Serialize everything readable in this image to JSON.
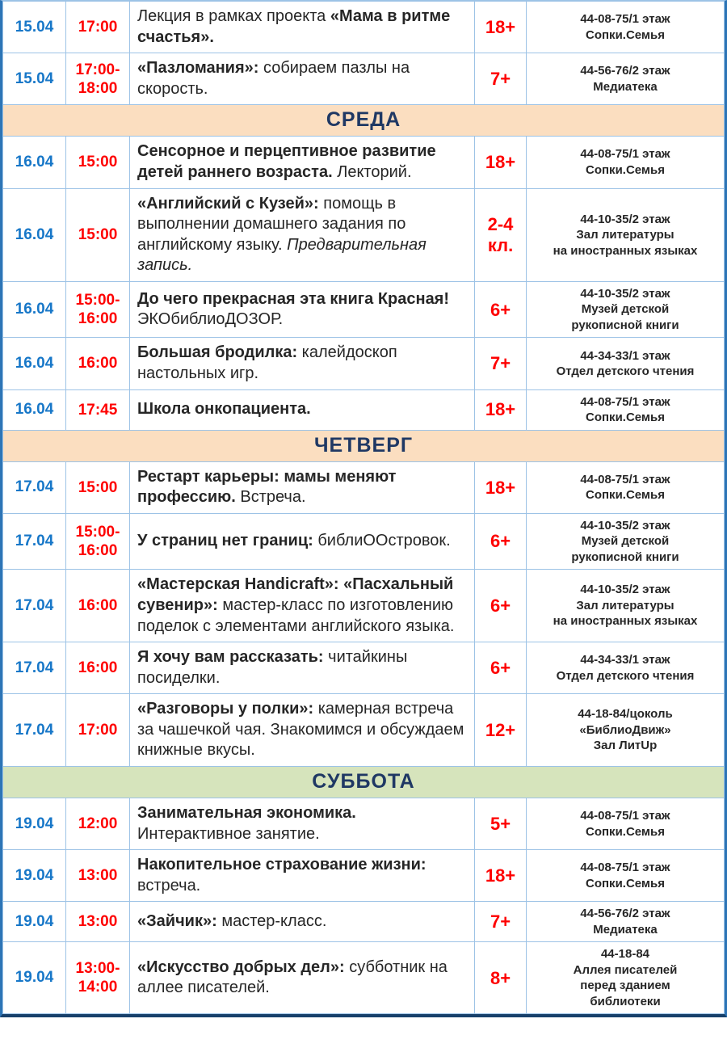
{
  "colors": {
    "date_text": "#1777C8",
    "time_text": "#FE0000",
    "age_text": "#FE0000",
    "body_text": "#262626",
    "day_text": "#1F3864",
    "weekday_header_bg": "#FBDEC0",
    "saturday_header_bg": "#D6E4BC",
    "grid_border": "#9DC3E6",
    "outer_border": "#2E75B6",
    "outer_border_bottom": "#17406B"
  },
  "rows": [
    {
      "type": "event",
      "date": "15.04",
      "time_lines": [
        "17:00"
      ],
      "description": [
        {
          "text": "Лекция в рамках проекта ",
          "bold": false
        },
        {
          "text": "«Мама в ритме счастья».",
          "bold": true
        }
      ],
      "age_lines": [
        "18+"
      ],
      "location_lines": [
        "44-08-75/1 этаж",
        "Сопки.Семья"
      ]
    },
    {
      "type": "event",
      "date": "15.04",
      "time_lines": [
        "17:00-",
        "18:00"
      ],
      "description": [
        {
          "text": "«Пазломания»:",
          "bold": true
        },
        {
          "text": " собираем пазлы на скорость.",
          "bold": false
        }
      ],
      "age_lines": [
        "7+"
      ],
      "location_lines": [
        "44-56-76/2 этаж",
        "Медиатека"
      ]
    },
    {
      "type": "day",
      "label": "СРЕДА",
      "bg_key": "weekday_header_bg"
    },
    {
      "type": "event",
      "date": "16.04",
      "time_lines": [
        "15:00"
      ],
      "description": [
        {
          "text": "Сенсорное и перцептивное развитие детей раннего возраста.",
          "bold": true
        },
        {
          "text": " Лекторий.",
          "bold": false
        }
      ],
      "age_lines": [
        "18+"
      ],
      "location_lines": [
        "44-08-75/1 этаж",
        "Сопки.Семья"
      ]
    },
    {
      "type": "event",
      "date": "16.04",
      "time_lines": [
        "15:00"
      ],
      "description": [
        {
          "text": "«Английский с Кузей»:",
          "bold": true
        },
        {
          "text": " помощь в выполнении домашнего задания по английскому языку. ",
          "bold": false
        },
        {
          "text": "Предварительная запись.",
          "bold": false,
          "italic": true
        }
      ],
      "age_lines": [
        "2-4",
        "кл."
      ],
      "location_lines": [
        "44-10-35/2 этаж",
        "Зал литературы",
        "на иностранных языках"
      ]
    },
    {
      "type": "event",
      "date": "16.04",
      "time_lines": [
        "15:00-",
        "16:00"
      ],
      "description": [
        {
          "text": "До чего прекрасная эта книга Красная!",
          "bold": true
        },
        {
          "text": " ЭКОбиблиоДОЗОР.",
          "bold": false
        }
      ],
      "age_lines": [
        "6+"
      ],
      "location_lines": [
        "44-10-35/2 этаж",
        "Музей детской",
        "рукописной книги"
      ]
    },
    {
      "type": "event",
      "date": "16.04",
      "time_lines": [
        "16:00"
      ],
      "description": [
        {
          "text": "Большая бродилка:",
          "bold": true
        },
        {
          "text": " калейдоскоп настольных игр.",
          "bold": false
        }
      ],
      "age_lines": [
        "7+"
      ],
      "location_lines": [
        "44-34-33/1 этаж",
        "Отдел детского чтения"
      ]
    },
    {
      "type": "event",
      "date": "16.04",
      "time_lines": [
        "17:45"
      ],
      "description": [
        {
          "text": "Школа онкопациента.",
          "bold": true
        }
      ],
      "age_lines": [
        "18+"
      ],
      "location_lines": [
        "44-08-75/1 этаж",
        "Сопки.Семья"
      ]
    },
    {
      "type": "day",
      "label": "ЧЕТВЕРГ",
      "bg_key": "weekday_header_bg"
    },
    {
      "type": "event",
      "date": "17.04",
      "time_lines": [
        "15:00"
      ],
      "description": [
        {
          "text": "Рестарт карьеры: мамы меняют профессию.",
          "bold": true
        },
        {
          "text": " Встреча.",
          "bold": false
        }
      ],
      "age_lines": [
        "18+"
      ],
      "location_lines": [
        "44-08-75/1 этаж",
        "Сопки.Семья"
      ]
    },
    {
      "type": "event",
      "date": "17.04",
      "time_lines": [
        "15:00-",
        "16:00"
      ],
      "description": [
        {
          "text": "У страниц нет границ:",
          "bold": true
        },
        {
          "text": " библиООстровок.",
          "bold": false
        }
      ],
      "age_lines": [
        "6+"
      ],
      "location_lines": [
        "44-10-35/2 этаж",
        "Музей детской",
        "рукописной книги"
      ]
    },
    {
      "type": "event",
      "date": "17.04",
      "time_lines": [
        "16:00"
      ],
      "description": [
        {
          "text": "«Мастерская Handicraft»: «Пасхальный сувенир»:",
          "bold": true
        },
        {
          "text": " мастер-класс по изготовлению поделок с элементами английского языка.",
          "bold": false
        }
      ],
      "age_lines": [
        "6+"
      ],
      "location_lines": [
        "44-10-35/2 этаж",
        "Зал литературы",
        "на иностранных языках"
      ]
    },
    {
      "type": "event",
      "date": "17.04",
      "time_lines": [
        "16:00"
      ],
      "description": [
        {
          "text": "Я хочу вам рассказать:",
          "bold": true
        },
        {
          "text": " читайкины посиделки.",
          "bold": false
        }
      ],
      "age_lines": [
        "6+"
      ],
      "location_lines": [
        "44-34-33/1 этаж",
        "Отдел детского чтения"
      ]
    },
    {
      "type": "event",
      "date": "17.04",
      "time_lines": [
        "17:00"
      ],
      "description": [
        {
          "text": "«Разговоры у полки»:",
          "bold": true
        },
        {
          "text": " камерная встреча за чашечкой чая. Знакомимся и обсуждаем книжные вкусы.",
          "bold": false
        }
      ],
      "age_lines": [
        "12+"
      ],
      "location_lines": [
        "44-18-84/цоколь",
        "«БиблиоДвиж»",
        "Зал ЛитUp"
      ]
    },
    {
      "type": "day",
      "label": "СУББОТА",
      "bg_key": "saturday_header_bg"
    },
    {
      "type": "event",
      "date": "19.04",
      "time_lines": [
        "12:00"
      ],
      "description": [
        {
          "text": "Занимательная экономика.",
          "bold": true
        },
        {
          "text": " Интерактивное занятие.",
          "bold": false
        }
      ],
      "age_lines": [
        "5+"
      ],
      "location_lines": [
        "44-08-75/1 этаж",
        "Сопки.Семья"
      ]
    },
    {
      "type": "event",
      "date": "19.04",
      "time_lines": [
        "13:00"
      ],
      "description": [
        {
          "text": "Накопительное страхование жизни:",
          "bold": true
        },
        {
          "text": " встреча.",
          "bold": false
        }
      ],
      "age_lines": [
        "18+"
      ],
      "location_lines": [
        "44-08-75/1 этаж",
        "Сопки.Семья"
      ]
    },
    {
      "type": "event",
      "date": "19.04",
      "time_lines": [
        "13:00"
      ],
      "description": [
        {
          "text": "«Зайчик»:",
          "bold": true
        },
        {
          "text": " мастер-класс.",
          "bold": false
        }
      ],
      "age_lines": [
        "7+"
      ],
      "location_lines": [
        "44-56-76/2 этаж",
        "Медиатека"
      ]
    },
    {
      "type": "event",
      "date": "19.04",
      "time_lines": [
        "13:00-",
        "14:00"
      ],
      "description": [
        {
          "text": "«Искусство добрых дел»:",
          "bold": true
        },
        {
          "text": " субботник на аллее писателей.",
          "bold": false
        }
      ],
      "age_lines": [
        "8+"
      ],
      "location_lines": [
        "44-18-84",
        "Аллея писателей",
        "перед зданием",
        "библиотеки"
      ]
    }
  ]
}
